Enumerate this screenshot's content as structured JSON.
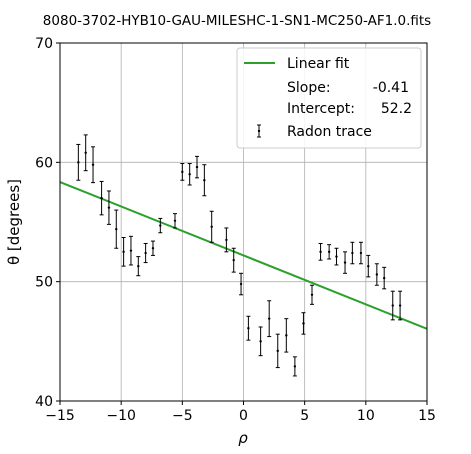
{
  "chart_data": {
    "type": "scatter",
    "title": "8080-3702-HYB10-GAU-MILESHC-1-SN1-MC250-AF1.0.fits",
    "xlabel": "ρ",
    "ylabel": "θ [degrees]",
    "xlim": [
      -15,
      15
    ],
    "ylim": [
      40,
      70
    ],
    "xticks": [
      -15,
      -10,
      -5,
      0,
      5,
      10,
      15
    ],
    "yticks": [
      40,
      50,
      60,
      70
    ],
    "xtick_labels": [
      "−15",
      "−10",
      "−5",
      "0",
      "5",
      "10",
      "15"
    ],
    "ytick_labels": [
      "40",
      "50",
      "60",
      "70"
    ],
    "grid": true,
    "legend_position": "top-right",
    "legend": {
      "fit_label": "Linear fit",
      "slope_label": "Slope:",
      "slope_value": "-0.41",
      "intercept_label": "Intercept:",
      "intercept_value": "52.2",
      "trace_label": "Radon trace"
    },
    "colors": {
      "fit": "#2ca02c",
      "trace": "#000000",
      "grid": "#b0b0b0"
    },
    "fit": {
      "slope": -0.41,
      "intercept": 52.2,
      "x": [
        -15,
        15
      ]
    },
    "series": [
      {
        "name": "Radon trace",
        "x": [
          -13.5,
          -12.9,
          -12.3,
          -11.6,
          -11.0,
          -10.4,
          -9.8,
          -9.2,
          -8.6,
          -8.0,
          -7.4,
          -6.8,
          -5.6,
          -5.0,
          -4.4,
          -3.8,
          -3.2,
          -2.6,
          -1.4,
          -0.8,
          -0.2,
          0.4,
          1.4,
          2.1,
          2.8,
          3.5,
          4.2,
          4.9,
          5.6,
          6.3,
          7.0,
          7.6,
          8.3,
          8.9,
          9.6,
          10.2,
          10.9,
          11.5,
          12.2,
          12.8
        ],
        "y": [
          60.0,
          60.8,
          59.8,
          57.0,
          56.2,
          54.4,
          52.5,
          52.6,
          51.3,
          52.4,
          52.8,
          54.7,
          55.1,
          59.2,
          59.0,
          59.6,
          58.5,
          54.6,
          53.5,
          51.8,
          49.8,
          46.1,
          45.0,
          46.9,
          44.2,
          45.5,
          42.9,
          46.5,
          48.9,
          52.5,
          52.5,
          52.1,
          51.6,
          52.4,
          52.4,
          51.3,
          50.6,
          50.3,
          48.0,
          48.0
        ],
        "yerr": [
          1.5,
          1.5,
          1.5,
          1.4,
          1.4,
          1.6,
          1.2,
          1.2,
          0.8,
          0.8,
          0.6,
          0.6,
          0.6,
          0.7,
          0.9,
          0.9,
          1.3,
          1.3,
          1.0,
          1.0,
          0.9,
          1.0,
          1.2,
          1.5,
          1.4,
          1.4,
          0.8,
          0.9,
          0.8,
          0.7,
          0.6,
          0.7,
          0.9,
          0.9,
          0.9,
          0.9,
          0.9,
          0.9,
          1.2,
          1.2
        ]
      }
    ]
  }
}
